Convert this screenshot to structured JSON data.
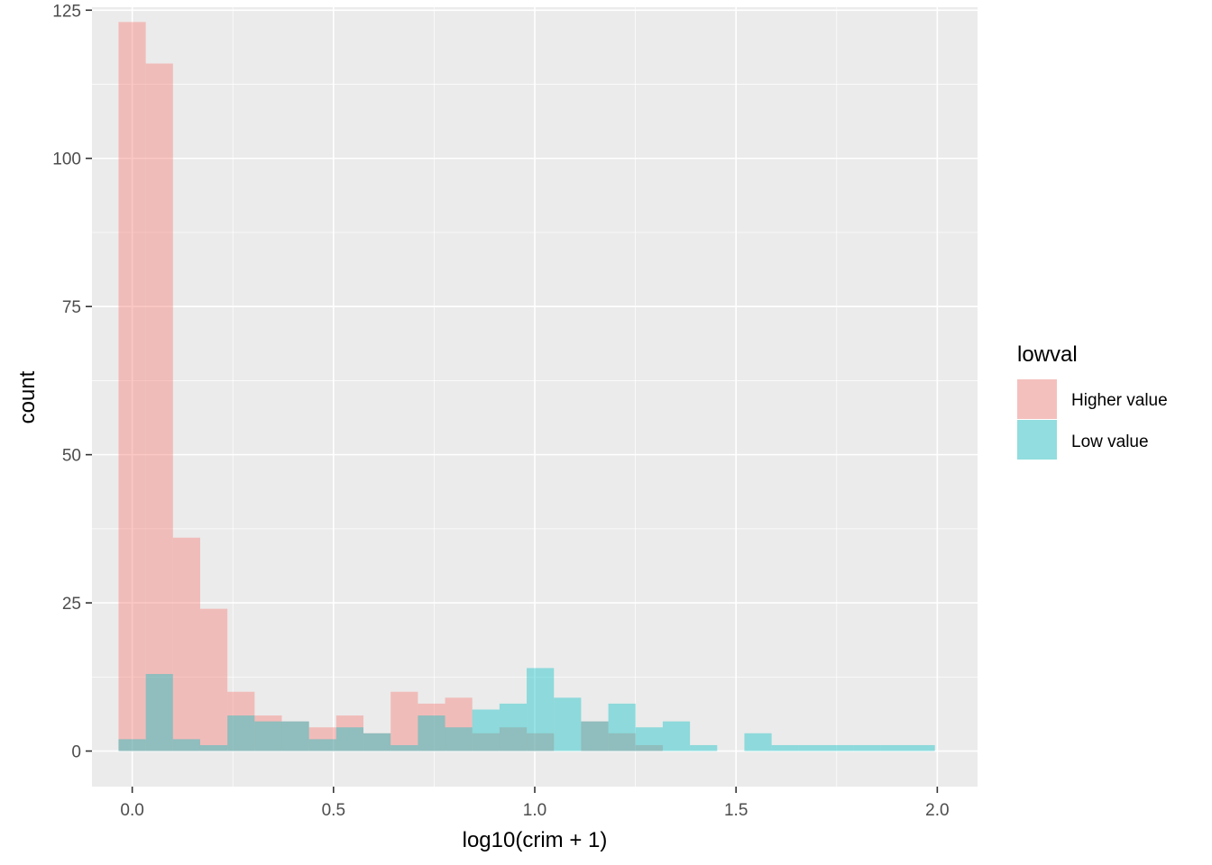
{
  "chart_data": {
    "type": "bar",
    "subtype": "overlapping histogram",
    "title": "",
    "xlabel": "log10(crim + 1)",
    "ylabel": "count",
    "xlim": [
      -0.1,
      2.1
    ],
    "ylim": [
      -6,
      125.5
    ],
    "x_ticks": [
      "0.0",
      "0.5",
      "1.0",
      "1.5",
      "2.0"
    ],
    "x_tick_values": [
      0.0,
      0.5,
      1.0,
      1.5,
      2.0
    ],
    "y_ticks": [
      "0",
      "25",
      "50",
      "75",
      "100",
      "125"
    ],
    "y_tick_values": [
      0,
      25,
      50,
      75,
      100,
      125
    ],
    "bin_start": -0.034,
    "bin_width": 0.0676,
    "grid": true,
    "legend": {
      "title": "lowval",
      "position": "right"
    },
    "series": [
      {
        "name": "Higher value",
        "color": "#F8766D",
        "values": [
          123,
          116,
          36,
          24,
          10,
          6,
          5,
          4,
          6,
          3,
          10,
          8,
          9,
          3,
          4,
          3,
          0,
          5,
          3,
          1,
          0,
          0,
          0,
          0,
          0,
          0,
          0,
          0,
          0,
          0
        ]
      },
      {
        "name": "Low value",
        "color": "#00BFC4",
        "values": [
          2,
          13,
          2,
          1,
          6,
          5,
          5,
          2,
          4,
          3,
          1,
          6,
          4,
          7,
          8,
          14,
          9,
          5,
          8,
          4,
          5,
          1,
          0,
          3,
          1,
          1,
          1,
          1,
          1,
          1
        ]
      }
    ]
  }
}
